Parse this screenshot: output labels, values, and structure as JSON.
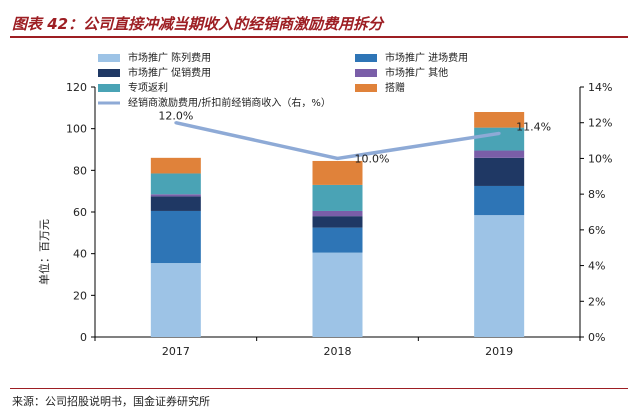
{
  "title": "图表 42：公司直接冲减当期收入的经销商激励费用拆分",
  "source": "来源：公司招股说明书，国金证券研究所",
  "chart_data": {
    "type": "bar",
    "stacked": true,
    "categories": [
      "2017",
      "2018",
      "2019"
    ],
    "ylabel": "单位：百万元",
    "ylim": [
      0,
      120
    ],
    "yticks": [
      "0",
      "20",
      "40",
      "60",
      "80",
      "100",
      "120"
    ],
    "y2lim": [
      0,
      14
    ],
    "y2ticks": [
      "0%",
      "2%",
      "4%",
      "6%",
      "8%",
      "10%",
      "12%",
      "14%"
    ],
    "legend_position": "top",
    "series": [
      {
        "name": "市场推广 陈列费用",
        "color": "#9dc3e6",
        "values": [
          35.5,
          40.5,
          58.5
        ]
      },
      {
        "name": "市场推广 进场费用",
        "color": "#2e75b6",
        "values": [
          25,
          12,
          14
        ]
      },
      {
        "name": "市场推广 促销费用",
        "color": "#1f3864",
        "values": [
          7,
          5.5,
          13.5
        ]
      },
      {
        "name": "市场推广 其他",
        "color": "#7a5ea8",
        "values": [
          1,
          2.5,
          3.5
        ]
      },
      {
        "name": "专项返利",
        "color": "#4aa3b5",
        "values": [
          10,
          12.5,
          11
        ]
      },
      {
        "name": "搭赠",
        "color": "#e0823a",
        "values": [
          7.5,
          11.5,
          7.5
        ]
      }
    ],
    "line": {
      "name": "经销商激励费用/折扣前经销商收入（右，%）",
      "color": "#8eaad6",
      "values": [
        12.0,
        10.0,
        11.4
      ],
      "labels": [
        "12.0%",
        "10.0%",
        "11.4%"
      ]
    }
  }
}
